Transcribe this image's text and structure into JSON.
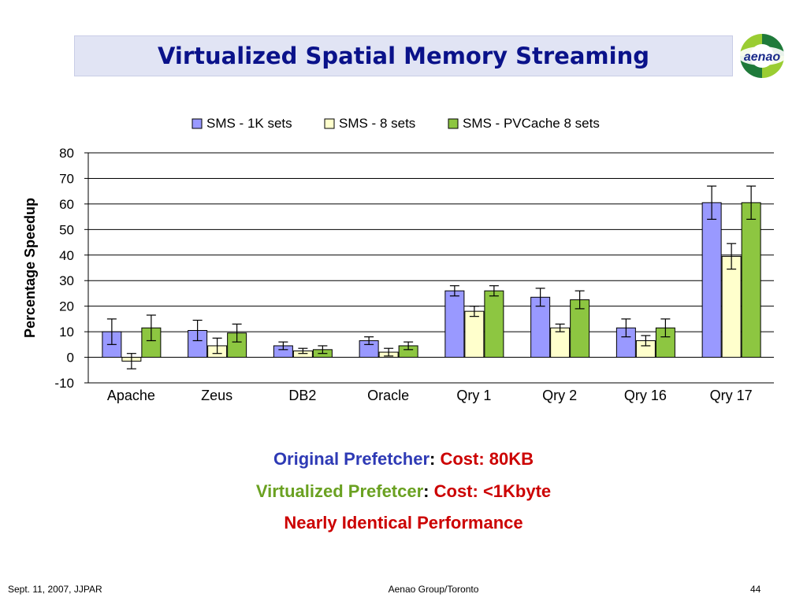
{
  "title": "Virtualized Spatial Memory Streaming",
  "logo_text": "aenao",
  "chart_data": {
    "type": "bar",
    "ylabel": "Percentage Speedup",
    "ylim": [
      -10,
      80
    ],
    "yticks": [
      -10,
      0,
      10,
      20,
      30,
      40,
      50,
      60,
      70,
      80
    ],
    "grid": true,
    "legend_position": "top",
    "categories": [
      "Apache",
      "Zeus",
      "DB2",
      "Oracle",
      "Qry 1",
      "Qry 2",
      "Qry 16",
      "Qry 17"
    ],
    "series": [
      {
        "name": "SMS - 1K sets",
        "color": "#9999ff",
        "values": [
          10,
          10.5,
          4.5,
          6.5,
          26,
          23.5,
          11.5,
          60.5
        ],
        "errors": [
          5,
          4,
          1.5,
          1.5,
          2,
          3.5,
          3.5,
          6.5
        ]
      },
      {
        "name": "SMS - 8 sets",
        "color": "#ffffcc",
        "values": [
          -1.5,
          4.5,
          2.5,
          2,
          18,
          11.5,
          6.5,
          39.5
        ],
        "errors": [
          3,
          3,
          1,
          1.5,
          2,
          1.5,
          2,
          5
        ]
      },
      {
        "name": "SMS - PVCache 8 sets",
        "color": "#8dc641",
        "values": [
          11.5,
          9.5,
          3,
          4.5,
          26,
          22.5,
          11.5,
          60.5
        ],
        "errors": [
          5,
          3.5,
          1.5,
          1.5,
          2,
          3.5,
          3.5,
          6.5
        ]
      }
    ]
  },
  "lines": [
    {
      "parts": [
        {
          "text": "Original Prefetcher",
          "color": "#2e3ab5"
        },
        {
          "text": ": ",
          "color": "#000000"
        },
        {
          "text": "Cost: 80KB",
          "color": "#cc0000"
        }
      ]
    },
    {
      "parts": [
        {
          "text": "Virtualized Prefetcer",
          "color": "#6aa121"
        },
        {
          "text": ": ",
          "color": "#000000"
        },
        {
          "text": "Cost: <1Kbyte",
          "color": "#cc0000"
        }
      ]
    },
    {
      "parts": [
        {
          "text": "Nearly Identical Performance",
          "color": "#cc0000"
        }
      ]
    }
  ],
  "footer": {
    "left": "Sept. 11, 2007, JJPAR",
    "center": "Aenao Group/Toronto",
    "right": "44"
  }
}
